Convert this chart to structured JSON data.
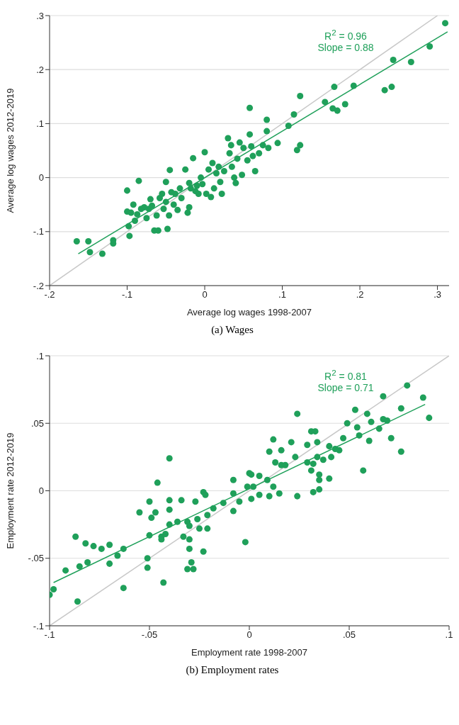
{
  "chart_data": [
    {
      "type": "scatter",
      "xlabel": "Average log wages 1998-2007",
      "ylabel": "Average log wages 2012-2019",
      "annotations": [
        "R$^{2}$ = 0.96",
        "Slope = 0.88",
        "(a) Wages"
      ],
      "xlim": [
        -0.2,
        0.315
      ],
      "ylim": [
        -0.2,
        0.3
      ],
      "xticks": [
        {
          "value": -0.2,
          "label": "-.2"
        },
        {
          "value": -0.1,
          "label": "-.1"
        },
        0,
        {
          "value": 0.1,
          "label": ".1"
        },
        {
          "value": 0.2,
          "label": ".2"
        },
        {
          "value": 0.3,
          "label": ".3"
        }
      ],
      "yticks": [
        {
          "value": -0.2,
          "label": "-.2"
        },
        {
          "value": -0.1,
          "label": "-.1"
        },
        0,
        {
          "value": 0.1,
          "label": ".1"
        },
        {
          "value": 0.2,
          "label": ".2"
        },
        {
          "value": 0.3,
          "label": ".3"
        }
      ],
      "grid": "y",
      "marker": "circle",
      "series": [
        {
          "type": "line",
          "color": "#c8c8c8",
          "marker": "none",
          "x": [
            -0.2,
            0.3
          ],
          "values": [
            -0.2,
            0.3
          ]
        },
        {
          "type": "line",
          "color": "#1fa05a",
          "marker": "none",
          "x": [
            -0.163,
            0.313
          ],
          "values": [
            -0.141,
            0.27
          ]
        },
        {
          "color": "#1fa05a",
          "x": [
            -0.165,
            -0.15,
            -0.148,
            -0.132,
            -0.118,
            -0.118,
            -0.1,
            -0.1,
            -0.098,
            -0.097,
            -0.095,
            -0.092,
            -0.09,
            -0.087,
            -0.085,
            -0.082,
            -0.078,
            -0.075,
            -0.072,
            -0.07,
            -0.068,
            -0.065,
            -0.062,
            -0.06,
            -0.058,
            -0.055,
            -0.053,
            -0.05,
            -0.05,
            -0.048,
            -0.046,
            -0.045,
            -0.043,
            -0.04,
            -0.038,
            -0.035,
            -0.032,
            -0.03,
            -0.025,
            -0.022,
            -0.02,
            -0.02,
            -0.018,
            -0.015,
            -0.012,
            -0.01,
            -0.008,
            -0.005,
            -0.003,
            0,
            0.002,
            0.005,
            0.008,
            0.01,
            0.012,
            0.015,
            0.018,
            0.02,
            0.022,
            0.025,
            0.03,
            0.032,
            0.034,
            0.035,
            0.038,
            0.04,
            0.042,
            0.045,
            0.048,
            0.05,
            0.055,
            0.058,
            0.058,
            0.06,
            0.062,
            0.065,
            0.07,
            0.075,
            0.08,
            0.08,
            0.082,
            0.094,
            0.108,
            0.115,
            0.119,
            0.123,
            0.123,
            0.155,
            0.165,
            0.167,
            0.171,
            0.181,
            0.192,
            0.232,
            0.241,
            0.243,
            0.266,
            0.29,
            0.31
          ],
          "values": [
            -0.118,
            -0.118,
            -0.138,
            -0.141,
            -0.116,
            -0.122,
            -0.024,
            -0.063,
            -0.09,
            -0.108,
            -0.065,
            -0.05,
            -0.08,
            -0.068,
            -0.006,
            -0.058,
            -0.055,
            -0.075,
            -0.058,
            -0.04,
            -0.052,
            -0.098,
            -0.07,
            -0.098,
            -0.038,
            -0.03,
            -0.058,
            -0.008,
            -0.045,
            -0.095,
            -0.07,
            0.014,
            -0.027,
            -0.05,
            -0.03,
            -0.06,
            -0.02,
            -0.038,
            0.015,
            -0.065,
            -0.055,
            -0.01,
            -0.02,
            0.036,
            -0.025,
            -0.015,
            -0.03,
            0,
            -0.012,
            0.047,
            -0.03,
            0.015,
            -0.036,
            0.027,
            -0.02,
            0.008,
            0.02,
            -0.008,
            -0.03,
            0.012,
            0.073,
            0.045,
            0.06,
            0.02,
            0,
            -0.01,
            0.035,
            0.065,
            0.005,
            0.055,
            0.032,
            0.129,
            0.08,
            0.058,
            0.04,
            0.012,
            0.045,
            0.06,
            0.107,
            0.086,
            0.055,
            0.064,
            0.096,
            0.117,
            0.051,
            0.06,
            0.151,
            0.14,
            0.128,
            0.168,
            0.124,
            0.136,
            0.17,
            0.162,
            0.168,
            0.218,
            0.214,
            0.243,
            0.286
          ]
        }
      ]
    },
    {
      "type": "scatter",
      "xlabel": "Employment rate 1998-2007",
      "ylabel": "Employment rate 2012-2019",
      "annotations": [
        "R$^{2}$ = 0.81",
        "Slope = 0.71",
        "(b) Employment rates"
      ],
      "xlim": [
        -0.1,
        0.1
      ],
      "ylim": [
        -0.1,
        0.1
      ],
      "xticks": [
        {
          "value": -0.1,
          "label": "-.1"
        },
        {
          "value": -0.05,
          "label": "-.05"
        },
        0,
        {
          "value": 0.05,
          "label": ".05"
        },
        {
          "value": 0.1,
          "label": ".1"
        }
      ],
      "yticks": [
        {
          "value": -0.1,
          "label": "-.1"
        },
        {
          "value": -0.05,
          "label": "-.05"
        },
        0,
        {
          "value": 0.05,
          "label": ".05"
        },
        {
          "value": 0.1,
          "label": ".1"
        }
      ],
      "grid": "y",
      "marker": "circle",
      "series": [
        {
          "type": "line",
          "color": "#c8c8c8",
          "marker": "none",
          "x": [
            -0.1,
            0.1
          ],
          "values": [
            -0.1,
            0.1
          ]
        },
        {
          "type": "line",
          "color": "#1fa05a",
          "marker": "none",
          "x": [
            -0.098,
            0.088
          ],
          "values": [
            -0.068,
            0.064
          ]
        },
        {
          "color": "#1fa05a",
          "x": [
            -0.1,
            -0.098,
            -0.086,
            -0.092,
            -0.085,
            -0.081,
            -0.087,
            -0.082,
            -0.078,
            -0.074,
            -0.07,
            -0.07,
            -0.066,
            -0.063,
            -0.063,
            -0.055,
            -0.051,
            -0.051,
            -0.05,
            -0.049,
            -0.05,
            -0.047,
            -0.046,
            -0.043,
            -0.044,
            -0.044,
            -0.042,
            -0.04,
            -0.04,
            -0.04,
            -0.04,
            -0.036,
            -0.034,
            -0.033,
            -0.031,
            -0.03,
            -0.03,
            -0.03,
            -0.029,
            -0.031,
            -0.028,
            -0.027,
            -0.026,
            -0.025,
            -0.023,
            -0.022,
            -0.023,
            -0.021,
            -0.021,
            -0.018,
            -0.013,
            -0.008,
            -0.008,
            -0.008,
            -0.005,
            -0.002,
            -0.001,
            0,
            0.001,
            0.005,
            0.002,
            0.001,
            0.005,
            0.01,
            0.009,
            0.012,
            0.015,
            0.013,
            0.012,
            0.01,
            0.016,
            0.016,
            0.018,
            0.021,
            0.023,
            0.024,
            0.024,
            0.029,
            0.029,
            0.031,
            0.032,
            0.032,
            0.031,
            0.033,
            0.034,
            0.034,
            0.035,
            0.035,
            0.035,
            0.037,
            0.04,
            0.04,
            0.041,
            0.043,
            0.045,
            0.047,
            0.049,
            0.053,
            0.054,
            0.055,
            0.057,
            0.059,
            0.06,
            0.061,
            0.065,
            0.067,
            0.067,
            0.069,
            0.071,
            0.076,
            0.076,
            0.079,
            0.087,
            0.09
          ],
          "values": [
            -0.077,
            -0.073,
            -0.082,
            -0.059,
            -0.056,
            -0.053,
            -0.034,
            -0.039,
            -0.041,
            -0.043,
            -0.04,
            -0.054,
            -0.048,
            -0.043,
            -0.072,
            -0.016,
            -0.05,
            -0.057,
            -0.033,
            -0.02,
            -0.008,
            -0.016,
            0.006,
            -0.068,
            -0.034,
            -0.036,
            -0.032,
            0.024,
            -0.007,
            -0.014,
            -0.025,
            -0.023,
            -0.007,
            -0.034,
            -0.023,
            -0.026,
            -0.036,
            -0.043,
            -0.053,
            -0.058,
            -0.058,
            -0.008,
            -0.021,
            -0.028,
            -0.001,
            -0.003,
            -0.045,
            -0.028,
            -0.018,
            -0.013,
            -0.009,
            0.008,
            -0.015,
            -0.002,
            -0.008,
            -0.038,
            0.003,
            0.013,
            0.012,
            0.011,
            0.003,
            -0.006,
            -0.003,
            -0.004,
            0.008,
            0.003,
            -0.002,
            0.021,
            0.038,
            0.029,
            0.019,
            0.03,
            0.019,
            0.036,
            0.025,
            0.057,
            -0.004,
            0.034,
            0.021,
            0.015,
            0.02,
            -0.001,
            0.044,
            0.044,
            0.036,
            0.025,
            0.012,
            0.008,
            0.001,
            0.023,
            0.009,
            0.033,
            0.025,
            0.031,
            0.03,
            0.039,
            0.05,
            0.06,
            0.047,
            0.041,
            0.015,
            0.057,
            0.037,
            0.051,
            0.046,
            0.07,
            0.053,
            0.052,
            0.039,
            0.061,
            0.029,
            0.078,
            0.069,
            0.054
          ]
        }
      ]
    }
  ]
}
